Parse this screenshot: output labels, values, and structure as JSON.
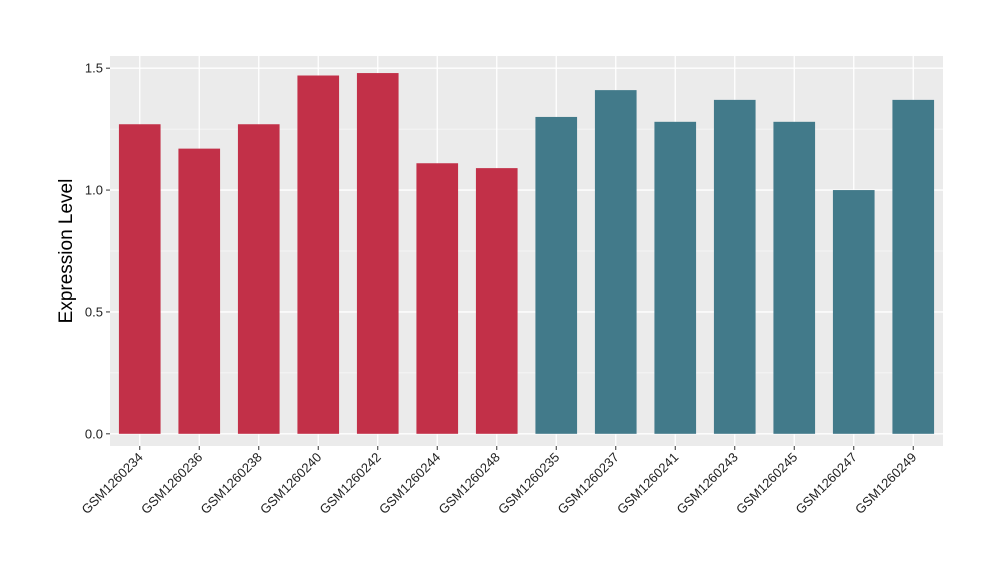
{
  "chart_data": {
    "type": "bar",
    "title": "",
    "xlabel": "",
    "ylabel": "Expression Level",
    "ylim": [
      -0.05,
      1.55
    ],
    "yticks": [
      0.0,
      0.5,
      1.0,
      1.5
    ],
    "ytick_labels": [
      "0.0",
      "0.5",
      "1.0",
      "1.5"
    ],
    "grid": true,
    "legend": "none",
    "categories": [
      "GSM1260234",
      "GSM1260236",
      "GSM1260238",
      "GSM1260240",
      "GSM1260242",
      "GSM1260244",
      "GSM1260248",
      "GSM1260235",
      "GSM1260237",
      "GSM1260241",
      "GSM1260243",
      "GSM1260245",
      "GSM1260247",
      "GSM1260249"
    ],
    "values": [
      1.27,
      1.17,
      1.27,
      1.47,
      1.48,
      1.11,
      1.09,
      1.3,
      1.41,
      1.28,
      1.37,
      1.28,
      1.0,
      1.37
    ],
    "bar_colors": [
      "#c23048",
      "#c23048",
      "#c23048",
      "#c23048",
      "#c23048",
      "#c23048",
      "#c23048",
      "#427a8a",
      "#427a8a",
      "#427a8a",
      "#427a8a",
      "#427a8a",
      "#427a8a",
      "#427a8a"
    ],
    "colors": {
      "panel_background": "#ebebeb",
      "grid_major": "#ffffff",
      "grid_minor": "#f5f5f5"
    }
  }
}
